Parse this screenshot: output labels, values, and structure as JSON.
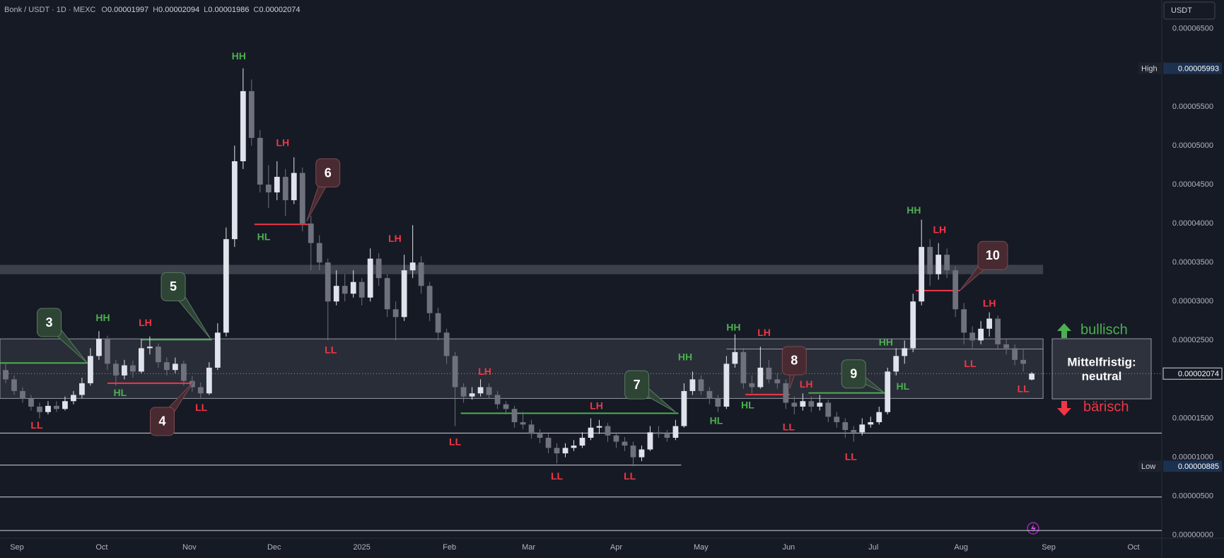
{
  "chart_data": {
    "type": "candlestick",
    "header": {
      "symbol": "Bonk / USDT · 1D · MEXC",
      "ohlc_labels": [
        "O",
        "H",
        "L",
        "C"
      ],
      "currency": "USDT"
    },
    "grid": false,
    "colors": {
      "up": "#e0e3eb",
      "down": "#6f727d",
      "bull": "#4caf50",
      "bear": "#f23645"
    },
    "xlim": [
      0,
      411
    ],
    "ylim": [
      -3e-07,
      6.87e-05
    ],
    "xticks": [
      {
        "value": 6,
        "label": "Sep"
      },
      {
        "value": 36,
        "label": "Oct"
      },
      {
        "value": 67,
        "label": "Nov"
      },
      {
        "value": 97,
        "label": "Dec"
      },
      {
        "value": 128,
        "label": "2025"
      },
      {
        "value": 159,
        "label": "Feb"
      },
      {
        "value": 187,
        "label": "Mar"
      },
      {
        "value": 218,
        "label": "Apr"
      },
      {
        "value": 248,
        "label": "May"
      },
      {
        "value": 279,
        "label": "Jun"
      },
      {
        "value": 309,
        "label": "Jul"
      },
      {
        "value": 340,
        "label": "Aug"
      },
      {
        "value": 371,
        "label": "Sep"
      },
      {
        "value": 401,
        "label": "Oct"
      }
    ],
    "yticks": [
      {
        "value": 6.5e-05,
        "label": "0.00006500"
      },
      {
        "value": 5.5e-05,
        "label": "0.00005500"
      },
      {
        "value": 5e-05,
        "label": "0.00005000"
      },
      {
        "value": 4.5e-05,
        "label": "0.00004500"
      },
      {
        "value": 4e-05,
        "label": "0.00004000"
      },
      {
        "value": 3.5e-05,
        "label": "0.00003500"
      },
      {
        "value": 3e-05,
        "label": "0.00003000"
      },
      {
        "value": 2.5e-05,
        "label": "0.00002500"
      },
      {
        "value": 1.5e-05,
        "label": "0.00001500"
      },
      {
        "value": 1e-05,
        "label": "0.00001000"
      },
      {
        "value": 5e-06,
        "label": "0.00000500"
      },
      {
        "value": 0,
        "label": "0.00000000"
      }
    ],
    "x": [
      2,
      5,
      8,
      11,
      14,
      17,
      20,
      23,
      26,
      29,
      32,
      35,
      38,
      41,
      44,
      47,
      50,
      53,
      56,
      59,
      62,
      65,
      68,
      71,
      74,
      77,
      80,
      83,
      86,
      89,
      92,
      95,
      98,
      101,
      104,
      107,
      110,
      113,
      116,
      119,
      122,
      125,
      128,
      131,
      134,
      137,
      140,
      143,
      146,
      149,
      152,
      155,
      158,
      161,
      164,
      167,
      170,
      173,
      176,
      179,
      182,
      185,
      188,
      191,
      194,
      197,
      200,
      203,
      206,
      209,
      212,
      215,
      218,
      221,
      224,
      227,
      230,
      233,
      236,
      239,
      242,
      245,
      248,
      251,
      254,
      257,
      260,
      263,
      266,
      269,
      272,
      275,
      278,
      281,
      284,
      287,
      290,
      293,
      296,
      299,
      302,
      305,
      308,
      311,
      314,
      317,
      320,
      323,
      326,
      329,
      332,
      335,
      338,
      341,
      344,
      347,
      350,
      353,
      356,
      359,
      362,
      365
    ],
    "open": [
      2.12e-05,
      2e-05,
      1.85e-05,
      1.75e-05,
      1.65e-05,
      1.58e-05,
      1.66e-05,
      1.62e-05,
      1.72e-05,
      1.8e-05,
      1.95e-05,
      2.3e-05,
      2.52e-05,
      2.2e-05,
      2.05e-05,
      2.18e-05,
      2.1e-05,
      2.4e-05,
      2.42e-05,
      2.22e-05,
      2.12e-05,
      2.2e-05,
      1.98e-05,
      1.9e-05,
      1.82e-05,
      2.15e-05,
      2.6e-05,
      3.8e-05,
      4.8e-05,
      5.7e-05,
      5.1e-05,
      4.5e-05,
      4.4e-05,
      4.6e-05,
      4.3e-05,
      4.65e-05,
      4e-05,
      3.75e-05,
      3.5e-05,
      3e-05,
      3.2e-05,
      3.1e-05,
      3.25e-05,
      3.05e-05,
      3.55e-05,
      3.3e-05,
      2.9e-05,
      2.8e-05,
      3.4e-05,
      3.5e-05,
      3.2e-05,
      2.85e-05,
      2.6e-05,
      2.3e-05,
      1.9e-05,
      1.78e-05,
      1.82e-05,
      1.9e-05,
      1.8e-05,
      1.68e-05,
      1.62e-05,
      1.45e-05,
      1.42e-05,
      1.3e-05,
      1.25e-05,
      1.12e-05,
      1.05e-05,
      1.12e-05,
      1.15e-05,
      1.25e-05,
      1.38e-05,
      1.4e-05,
      1.28e-05,
      1.2e-05,
      1.15e-05,
      1e-05,
      1.1e-05,
      1.32e-05,
      1.3e-05,
      1.25e-05,
      1.4e-05,
      1.85e-05,
      2e-05,
      1.85e-05,
      1.75e-05,
      1.65e-05,
      2.2e-05,
      2.35e-05,
      1.95e-05,
      1.9e-05,
      2.15e-05,
      2e-05,
      1.95e-05,
      1.7e-05,
      1.65e-05,
      1.72e-05,
      1.65e-05,
      1.7e-05,
      1.52e-05,
      1.45e-05,
      1.35e-05,
      1.32e-05,
      1.42e-05,
      1.45e-05,
      1.58e-05,
      2.1e-05,
      2.3e-05,
      2.4e-05,
      3e-05,
      3.7e-05,
      3.35e-05,
      3.6e-05,
      3.4e-05,
      2.9e-05,
      2.6e-05,
      2.5e-05,
      2.65e-05,
      2.78e-05,
      2.45e-05,
      2.4e-05,
      2.25e-05,
      1.997e-05
    ],
    "high": [
      2.2e-05,
      2.05e-05,
      1.9e-05,
      1.8e-05,
      1.7e-05,
      1.72e-05,
      1.72e-05,
      1.78e-05,
      1.85e-05,
      2.02e-05,
      2.4e-05,
      2.62e-05,
      2.56e-05,
      2.25e-05,
      2.25e-05,
      2.24e-05,
      2.52e-05,
      2.55e-05,
      2.46e-05,
      2.28e-05,
      2.28e-05,
      2.24e-05,
      2.04e-05,
      1.96e-05,
      2.22e-05,
      2.72e-05,
      3.95e-05,
      5e-05,
      5.993e-05,
      5.85e-05,
      5.2e-05,
      4.75e-05,
      4.8e-05,
      4.7e-05,
      4.85e-05,
      4.72e-05,
      4.1e-05,
      3.85e-05,
      3.55e-05,
      3.4e-05,
      3.35e-05,
      3.4e-05,
      3.3e-05,
      3.68e-05,
      3.62e-05,
      3.35e-05,
      3e-05,
      3.6e-05,
      3.98e-05,
      3.58e-05,
      3.25e-05,
      2.92e-05,
      2.65e-05,
      2.35e-05,
      1.95e-05,
      1.9e-05,
      2e-05,
      1.95e-05,
      1.85e-05,
      1.72e-05,
      1.66e-05,
      1.58e-05,
      1.48e-05,
      1.36e-05,
      1.3e-05,
      1.18e-05,
      1.18e-05,
      1.22e-05,
      1.32e-05,
      1.5e-05,
      1.48e-05,
      1.44e-05,
      1.32e-05,
      1.26e-05,
      1.2e-05,
      1.15e-05,
      1.4e-05,
      1.4e-05,
      1.35e-05,
      1.48e-05,
      1.95e-05,
      2.1e-05,
      2.05e-05,
      1.9e-05,
      1.8e-05,
      2.3e-05,
      2.58e-05,
      2.4e-05,
      2.05e-05,
      2.42e-05,
      2.25e-05,
      2.08e-05,
      2e-05,
      1.78e-05,
      1.82e-05,
      1.78e-05,
      1.8e-05,
      1.74e-05,
      1.58e-05,
      1.5e-05,
      1.4e-05,
      1.5e-05,
      1.52e-05,
      1.65e-05,
      2.15e-05,
      2.4e-05,
      2.5e-05,
      3.1e-05,
      4.05e-05,
      3.8e-05,
      3.75e-05,
      3.68e-05,
      3.45e-05,
      2.98e-05,
      2.68e-05,
      2.75e-05,
      2.86e-05,
      2.82e-05,
      2.52e-05,
      2.45e-05,
      2.38e-05,
      2.094e-05
    ],
    "low": [
      1.95e-05,
      1.8e-05,
      1.7e-05,
      1.6e-05,
      1.5e-05,
      1.55e-05,
      1.58e-05,
      1.6e-05,
      1.68e-05,
      1.76e-05,
      1.92e-05,
      2.25e-05,
      2.12e-05,
      1.92e-05,
      2e-05,
      2.02e-05,
      2.08e-05,
      2.32e-05,
      2.15e-05,
      2.05e-05,
      2.08e-05,
      1.92e-05,
      1.84e-05,
      1.76e-05,
      1.8e-05,
      2.12e-05,
      2.55e-05,
      3.7e-05,
      4.7e-05,
      5e-05,
      4.4e-05,
      4.2e-05,
      4.3e-05,
      4.1e-05,
      4.25e-05,
      3.9e-05,
      3.4e-05,
      3.4e-05,
      2.5e-05,
      2.95e-05,
      3e-05,
      3.05e-05,
      2.95e-05,
      3e-05,
      3.2e-05,
      2.8e-05,
      2.5e-05,
      2.75e-05,
      3.3e-05,
      3.1e-05,
      2.75e-05,
      2.5e-05,
      2.2e-05,
      1.4e-05,
      1.7e-05,
      1.74e-05,
      1.78e-05,
      1.75e-05,
      1.62e-05,
      1.55e-05,
      1.38e-05,
      1.36e-05,
      1.24e-05,
      1.18e-05,
      1.05e-05,
      9.2e-06,
      1e-05,
      1.08e-05,
      1.12e-05,
      1.22e-05,
      1.3e-05,
      1.2e-05,
      1.12e-05,
      1.08e-05,
      8.85e-06,
      9.5e-06,
      1.08e-05,
      1.25e-05,
      1.2e-05,
      1.22e-05,
      1.38e-05,
      1.8e-05,
      1.8e-05,
      1.68e-05,
      1.58e-05,
      1.62e-05,
      2.15e-05,
      1.88e-05,
      1.82e-05,
      1.88e-05,
      1.95e-05,
      1.88e-05,
      1.62e-05,
      1.55e-05,
      1.6e-05,
      1.58e-05,
      1.6e-05,
      1.45e-05,
      1.38e-05,
      1.25e-05,
      1.2e-05,
      1.28e-05,
      1.38e-05,
      1.42e-05,
      1.55e-05,
      2.05e-05,
      2.2e-05,
      2.35e-05,
      2.95e-05,
      3.2e-05,
      3.28e-05,
      3.3e-05,
      2.8e-05,
      2.45e-05,
      2.4e-05,
      2.45e-05,
      2.55e-05,
      2.38e-05,
      2.32e-05,
      2.18e-05,
      2.1e-05,
      1.986e-05
    ],
    "close": [
      2e-05,
      1.85e-05,
      1.75e-05,
      1.65e-05,
      1.58e-05,
      1.66e-05,
      1.62e-05,
      1.72e-05,
      1.8e-05,
      1.95e-05,
      2.3e-05,
      2.52e-05,
      2.2e-05,
      2.05e-05,
      2.18e-05,
      2.1e-05,
      2.4e-05,
      2.42e-05,
      2.22e-05,
      2.12e-05,
      2.2e-05,
      1.98e-05,
      1.9e-05,
      1.82e-05,
      2.15e-05,
      2.6e-05,
      3.8e-05,
      4.8e-05,
      5.7e-05,
      5.1e-05,
      4.5e-05,
      4.4e-05,
      4.6e-05,
      4.3e-05,
      4.65e-05,
      4e-05,
      3.75e-05,
      3.5e-05,
      3e-05,
      3.2e-05,
      3.1e-05,
      3.25e-05,
      3.05e-05,
      3.55e-05,
      3.3e-05,
      2.9e-05,
      2.8e-05,
      3.4e-05,
      3.5e-05,
      3.2e-05,
      2.85e-05,
      2.6e-05,
      2.3e-05,
      1.9e-05,
      1.78e-05,
      1.82e-05,
      1.9e-05,
      1.8e-05,
      1.68e-05,
      1.62e-05,
      1.45e-05,
      1.42e-05,
      1.3e-05,
      1.25e-05,
      1.12e-05,
      1.05e-05,
      1.12e-05,
      1.15e-05,
      1.25e-05,
      1.38e-05,
      1.4e-05,
      1.28e-05,
      1.2e-05,
      1.15e-05,
      1e-05,
      1.1e-05,
      1.32e-05,
      1.3e-05,
      1.25e-05,
      1.4e-05,
      1.85e-05,
      2e-05,
      1.85e-05,
      1.75e-05,
      1.65e-05,
      2.2e-05,
      2.35e-05,
      1.95e-05,
      1.9e-05,
      2.15e-05,
      2e-05,
      1.95e-05,
      1.7e-05,
      1.65e-05,
      1.72e-05,
      1.65e-05,
      1.7e-05,
      1.52e-05,
      1.45e-05,
      1.35e-05,
      1.32e-05,
      1.42e-05,
      1.45e-05,
      1.58e-05,
      2.1e-05,
      2.3e-05,
      2.4e-05,
      3e-05,
      3.7e-05,
      3.35e-05,
      3.6e-05,
      3.4e-05,
      2.9e-05,
      2.6e-05,
      2.5e-05,
      2.65e-05,
      2.78e-05,
      2.45e-05,
      2.4e-05,
      2.25e-05,
      2.2e-05,
      2.074e-05
    ],
    "extremes": {
      "high_label": "High",
      "low_label": "Low",
      "high_index": 28,
      "low_index": 74
    },
    "zones": [
      {
        "from": 0,
        "to": 369,
        "low": 3.35e-05,
        "high": 3.47e-05,
        "color": "#5d606b"
      },
      {
        "from": 0,
        "to": 369,
        "low": 1.755e-05,
        "high": 2.52e-05,
        "color": "#787b86"
      }
    ],
    "levels": [
      {
        "y": 1.31e-05,
        "from": 0,
        "to": 411,
        "color": "#d1d4dc"
      },
      {
        "y": 9e-06,
        "from": 0,
        "to": 241,
        "color": "#d1d4dc"
      },
      {
        "y": 4.9e-06,
        "from": 0,
        "to": 411,
        "color": "#d1d4dc"
      },
      {
        "y": 6e-07,
        "from": 0,
        "to": 411,
        "color": "#d1d4dc"
      },
      {
        "y": 2.39e-05,
        "from": 257,
        "to": 369,
        "color": "#9598a1"
      },
      {
        "y": 2.21e-05,
        "from": 0,
        "to": 31,
        "color": "#4caf50"
      },
      {
        "y": 1.95e-05,
        "from": 38,
        "to": 67.6,
        "color": "#f23645"
      },
      {
        "y": 2.51e-05,
        "from": 50,
        "to": 75,
        "color": "#4caf50"
      },
      {
        "y": 3.99e-05,
        "from": 90,
        "to": 110,
        "color": "#f23645"
      },
      {
        "y": 1.565e-05,
        "from": 163,
        "to": 240,
        "color": "#4caf50"
      },
      {
        "y": 1.805e-05,
        "from": 263.7,
        "to": 279.4,
        "color": "#f23645"
      },
      {
        "y": 1.825e-05,
        "from": 286,
        "to": 313,
        "color": "#4caf50"
      },
      {
        "y": 3.14e-05,
        "from": 324,
        "to": 339.6,
        "color": "#f23645"
      }
    ],
    "swings": [
      {
        "text": "LL",
        "x": 13,
        "y": 1.4e-05,
        "color": "#f23645"
      },
      {
        "text": "HH",
        "x": 36.4,
        "y": 2.78e-05,
        "color": "#4caf50"
      },
      {
        "text": "HL",
        "x": 42.5,
        "y": 1.82e-05,
        "color": "#4caf50"
      },
      {
        "text": "LH",
        "x": 51.4,
        "y": 2.72e-05,
        "color": "#f23645"
      },
      {
        "text": "LL",
        "x": 71.2,
        "y": 1.63e-05,
        "color": "#f23645"
      },
      {
        "text": "HH",
        "x": 84.5,
        "y": 6.14e-05,
        "color": "#4caf50"
      },
      {
        "text": "LH",
        "x": 100,
        "y": 5.03e-05,
        "color": "#f23645"
      },
      {
        "text": "HL",
        "x": 93.3,
        "y": 3.82e-05,
        "color": "#4caf50"
      },
      {
        "text": "LH",
        "x": 139.7,
        "y": 3.8e-05,
        "color": "#f23645"
      },
      {
        "text": "LL",
        "x": 117,
        "y": 2.37e-05,
        "color": "#f23645"
      },
      {
        "text": "LH",
        "x": 171.5,
        "y": 2.09e-05,
        "color": "#f23645"
      },
      {
        "text": "LL",
        "x": 161,
        "y": 1.19e-05,
        "color": "#f23645"
      },
      {
        "text": "LH",
        "x": 211,
        "y": 1.65e-05,
        "color": "#f23645"
      },
      {
        "text": "LL",
        "x": 197,
        "y": 7.5e-06,
        "color": "#f23645"
      },
      {
        "text": "LL",
        "x": 222.8,
        "y": 7.5e-06,
        "color": "#f23645"
      },
      {
        "text": "HH",
        "x": 242.4,
        "y": 2.28e-05,
        "color": "#4caf50"
      },
      {
        "text": "HL",
        "x": 253.4,
        "y": 1.46e-05,
        "color": "#4caf50"
      },
      {
        "text": "HH",
        "x": 259.5,
        "y": 2.66e-05,
        "color": "#4caf50"
      },
      {
        "text": "LH",
        "x": 270.3,
        "y": 2.59e-05,
        "color": "#f23645"
      },
      {
        "text": "HL",
        "x": 264.5,
        "y": 1.66e-05,
        "color": "#4caf50"
      },
      {
        "text": "LH",
        "x": 285.2,
        "y": 1.93e-05,
        "color": "#f23645"
      },
      {
        "text": "LL",
        "x": 279,
        "y": 1.38e-05,
        "color": "#f23645"
      },
      {
        "text": "HH",
        "x": 313.4,
        "y": 2.47e-05,
        "color": "#4caf50"
      },
      {
        "text": "HL",
        "x": 319.4,
        "y": 1.9e-05,
        "color": "#4caf50"
      },
      {
        "text": "LL",
        "x": 301,
        "y": 1e-05,
        "color": "#f23645"
      },
      {
        "text": "HH",
        "x": 323.3,
        "y": 4.16e-05,
        "color": "#4caf50"
      },
      {
        "text": "LH",
        "x": 332.4,
        "y": 3.91e-05,
        "color": "#f23645"
      },
      {
        "text": "LH",
        "x": 350,
        "y": 2.97e-05,
        "color": "#f23645"
      },
      {
        "text": "LL",
        "x": 343.2,
        "y": 2.19e-05,
        "color": "#f23645"
      },
      {
        "text": "LL",
        "x": 362,
        "y": 1.87e-05,
        "color": "#f23645"
      }
    ],
    "callouts": [
      {
        "label": "3",
        "x": 17.4,
        "y": 2.73e-05,
        "tip_x": 30.9,
        "tip_y": 2.21e-05,
        "color": "#2e4536"
      },
      {
        "label": "4",
        "x": 57.4,
        "y": 1.46e-05,
        "tip_x": 68.5,
        "tip_y": 1.97e-05,
        "color": "#4a2a31"
      },
      {
        "label": "5",
        "x": 61.3,
        "y": 3.19e-05,
        "tip_x": 74.5,
        "tip_y": 2.52e-05,
        "color": "#2e4536"
      },
      {
        "label": "6",
        "x": 116,
        "y": 4.65e-05,
        "tip_x": 108.5,
        "tip_y": 4.03e-05,
        "color": "#4a2a31"
      },
      {
        "label": "7",
        "x": 225.3,
        "y": 1.93e-05,
        "tip_x": 239,
        "tip_y": 1.58e-05,
        "color": "#2e4536"
      },
      {
        "label": "8",
        "x": 281,
        "y": 2.24e-05,
        "tip_x": 279.4,
        "tip_y": 1.88e-05,
        "color": "#4a2a31"
      },
      {
        "label": "9",
        "x": 302,
        "y": 2.07e-05,
        "tip_x": 312.8,
        "tip_y": 1.83e-05,
        "color": "#2e4536"
      },
      {
        "label": "10",
        "x": 351.2,
        "y": 3.59e-05,
        "tip_x": 339.6,
        "tip_y": 3.14e-05,
        "color": "#4a2a31"
      }
    ],
    "outlook": {
      "bullish": "bullisch",
      "verdict": [
        "Mittelfristig:",
        "neutral"
      ],
      "bearish": "bärisch"
    }
  }
}
